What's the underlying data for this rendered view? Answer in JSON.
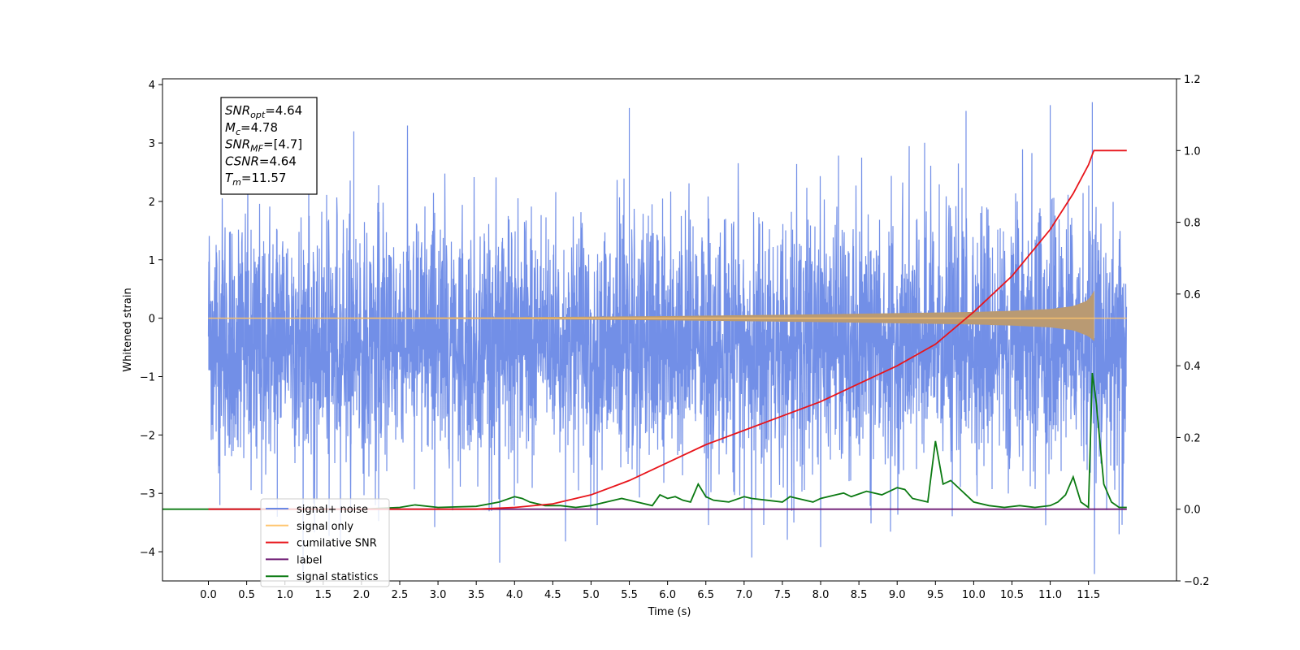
{
  "chart_data": {
    "type": "line",
    "xlabel": "Time (s)",
    "ylabel": "Whitened strain",
    "xlim": [
      -0.6,
      12.65
    ],
    "ylim": [
      -4.5,
      4.1
    ],
    "y2lim": [
      -0.2,
      1.2
    ],
    "x_ticks": [
      0.0,
      0.5,
      1.0,
      1.5,
      2.0,
      2.5,
      3.0,
      3.5,
      4.0,
      4.5,
      5.0,
      5.5,
      6.0,
      6.5,
      7.0,
      7.5,
      8.0,
      8.5,
      9.0,
      9.5,
      10.0,
      10.5,
      11.0,
      11.5
    ],
    "x_tick_labels": [
      "0.0",
      "0.5",
      "1.0",
      "1.5",
      "2.0",
      "2.5",
      "3.0",
      "3.5",
      "4.0",
      "4.5",
      "5.0",
      "5.5",
      "6.0",
      "6.5",
      "7.0",
      "7.5",
      "8.0",
      "8.5",
      "9.0",
      "9.5",
      "10.0",
      "10.5",
      "11.0",
      "11.5"
    ],
    "y_ticks": [
      4,
      3,
      2,
      1,
      0,
      -1,
      -2,
      -3,
      -4
    ],
    "y_tick_labels": [
      "4",
      "3",
      "2",
      "1",
      "0",
      "−1",
      "−2",
      "−3",
      "−4"
    ],
    "y2_ticks": [
      1.2,
      1.0,
      0.8,
      0.6,
      0.4,
      0.2,
      0.0,
      -0.2
    ],
    "y2_tick_labels": [
      "1.2",
      "1.0",
      "0.8",
      "0.6",
      "0.4",
      "0.2",
      "0.0",
      "−0.2"
    ],
    "grid": false,
    "legend_position": "lower-left",
    "annotation": {
      "lines": [
        {
          "base": "SNR",
          "sub": "opt",
          "value": "=4.64"
        },
        {
          "base": "M",
          "sub": "c",
          "value": "=4.78"
        },
        {
          "base": "SNR",
          "sub": "MF",
          "value": "=[4.7]"
        },
        {
          "base": "CSNR",
          "sub": "",
          "value": "=4.64"
        },
        {
          "base": "T",
          "sub": "m",
          "value": "=11.57"
        }
      ]
    },
    "series": [
      {
        "name": "signal+ noise",
        "color": "#6a89e6",
        "axis": "left",
        "style": "dense-noise",
        "x_range": [
          0.0,
          12.0
        ],
        "band": [
          -1.6,
          1.6
        ],
        "peaks_max": [
          3.6,
          3.2,
          3.55,
          3.65,
          3.7
        ],
        "peaks_min": [
          -3.2,
          -3.4,
          -4.1,
          -3.5,
          -3.7
        ]
      },
      {
        "name": "signal only",
        "color": "#ffc56e",
        "axis": "left",
        "style": "chirp-envelope",
        "x": [
          0.0,
          4.0,
          6.0,
          8.0,
          9.0,
          10.0,
          10.5,
          11.0,
          11.3,
          11.5,
          11.57,
          11.6,
          12.0
        ],
        "y_upper": [
          0.0,
          0.01,
          0.03,
          0.06,
          0.08,
          0.1,
          0.12,
          0.15,
          0.2,
          0.3,
          0.45,
          0.0,
          0.0
        ],
        "y_lower": [
          0.0,
          -0.01,
          -0.03,
          -0.06,
          -0.08,
          -0.1,
          -0.12,
          -0.15,
          -0.2,
          -0.3,
          -0.38,
          0.0,
          0.0
        ]
      },
      {
        "name": "cumilative SNR",
        "color": "#e8151b",
        "axis": "right",
        "x": [
          0.0,
          3.5,
          4.0,
          4.5,
          5.0,
          5.5,
          6.0,
          6.5,
          7.0,
          7.5,
          8.0,
          8.5,
          9.0,
          9.5,
          10.0,
          10.5,
          11.0,
          11.3,
          11.5,
          11.57,
          12.0
        ],
        "y": [
          0.0,
          0.0,
          0.005,
          0.015,
          0.04,
          0.08,
          0.13,
          0.18,
          0.22,
          0.26,
          0.3,
          0.35,
          0.4,
          0.46,
          0.55,
          0.65,
          0.78,
          0.88,
          0.96,
          1.0,
          1.0
        ]
      },
      {
        "name": "label",
        "color": "#6e1a73",
        "axis": "right",
        "x": [
          0.0,
          12.0
        ],
        "y": [
          0.0,
          0.0
        ]
      },
      {
        "name": "signal statistics",
        "color": "#0b7a12",
        "axis": "right",
        "x": [
          -0.6,
          0.0,
          0.5,
          1.0,
          1.5,
          2.0,
          2.5,
          2.7,
          3.0,
          3.5,
          3.8,
          4.0,
          4.1,
          4.2,
          4.4,
          4.6,
          4.8,
          5.0,
          5.2,
          5.4,
          5.6,
          5.8,
          5.9,
          6.0,
          6.1,
          6.2,
          6.3,
          6.4,
          6.5,
          6.6,
          6.8,
          7.0,
          7.1,
          7.3,
          7.5,
          7.6,
          7.7,
          7.9,
          8.0,
          8.2,
          8.3,
          8.4,
          8.6,
          8.8,
          9.0,
          9.1,
          9.2,
          9.4,
          9.5,
          9.6,
          9.7,
          9.8,
          9.9,
          10.0,
          10.2,
          10.4,
          10.6,
          10.8,
          11.0,
          11.1,
          11.2,
          11.3,
          11.4,
          11.5,
          11.55,
          11.6,
          11.7,
          11.8,
          11.9,
          12.0
        ],
        "y": [
          0.0,
          0.0,
          0.0,
          0.0,
          0.0,
          0.0,
          0.005,
          0.012,
          0.005,
          0.008,
          0.02,
          0.035,
          0.03,
          0.02,
          0.01,
          0.01,
          0.005,
          0.01,
          0.02,
          0.03,
          0.02,
          0.01,
          0.04,
          0.03,
          0.035,
          0.025,
          0.02,
          0.07,
          0.035,
          0.025,
          0.02,
          0.035,
          0.03,
          0.025,
          0.02,
          0.035,
          0.03,
          0.02,
          0.03,
          0.04,
          0.045,
          0.035,
          0.05,
          0.04,
          0.06,
          0.055,
          0.03,
          0.02,
          0.19,
          0.07,
          0.08,
          0.06,
          0.04,
          0.02,
          0.01,
          0.005,
          0.01,
          0.005,
          0.01,
          0.02,
          0.04,
          0.09,
          0.02,
          0.005,
          0.38,
          0.3,
          0.07,
          0.02,
          0.005,
          0.005
        ]
      }
    ]
  }
}
